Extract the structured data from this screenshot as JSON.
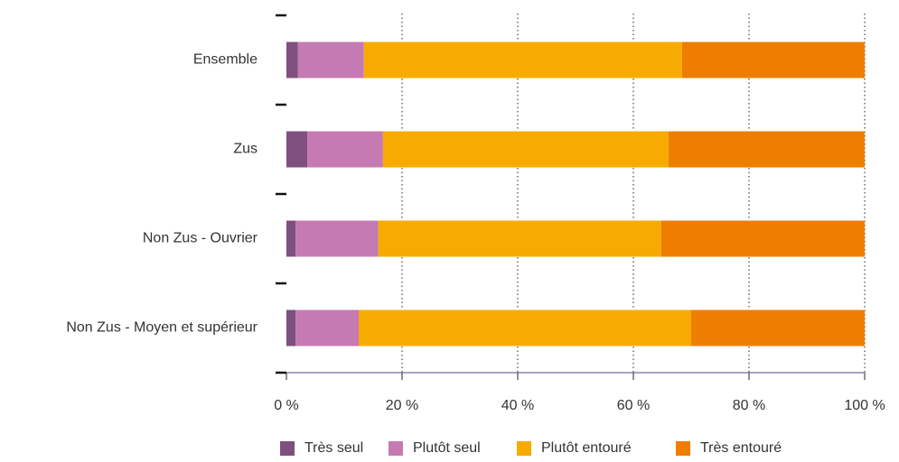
{
  "chart_data": {
    "type": "stacked-bar-horizontal",
    "categories": [
      "Ensemble",
      "Zus",
      "Non Zus - Ouvrier",
      "Non Zus - Moyen et supérieur"
    ],
    "series": [
      {
        "name": "Très seul",
        "color": "#7f4f7f",
        "values": [
          2,
          3.6,
          1.6,
          1.6
        ]
      },
      {
        "name": "Plutôt seul",
        "color": "#c57ab3",
        "values": [
          11.4,
          13.1,
          14.3,
          10.9
        ]
      },
      {
        "name": "Plutôt entouré",
        "color": "#f7ab00",
        "values": [
          55,
          49.4,
          48.9,
          57.5
        ]
      },
      {
        "name": "Très entouré",
        "color": "#ef7d00",
        "values": [
          31.6,
          33.9,
          35.2,
          30
        ]
      }
    ],
    "xlim": [
      0,
      100
    ],
    "xticks": [
      {
        "value": 0,
        "label": "0 %"
      },
      {
        "value": 20,
        "label": "20 %"
      },
      {
        "value": 40,
        "label": "40 %"
      },
      {
        "value": 60,
        "label": "60 %"
      },
      {
        "value": 80,
        "label": "80 %"
      },
      {
        "value": 100,
        "label": "100 %"
      }
    ],
    "grid": true,
    "legend": "bottom"
  }
}
